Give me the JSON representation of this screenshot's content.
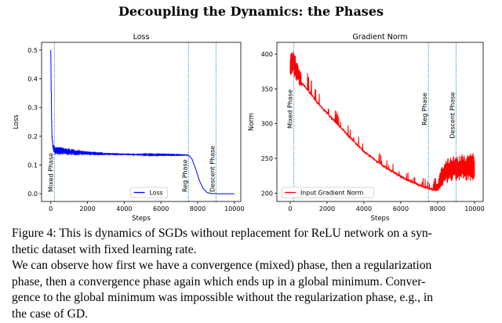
{
  "title": "Decoupling the Dynamics: the Phases",
  "chart_data": [
    {
      "type": "line",
      "title": "Loss",
      "xlabel": "Steps",
      "ylabel": "Loss",
      "xlim": [
        -500,
        10350
      ],
      "ylim": [
        -0.027,
        0.527
      ],
      "xticks": [
        0,
        2000,
        4000,
        6000,
        8000,
        10000
      ],
      "yticks": [
        0.0,
        0.1,
        0.2,
        0.3,
        0.4,
        0.5
      ],
      "ytick_labels": [
        "0.0",
        "0.1",
        "0.2",
        "0.3",
        "0.4",
        "0.5"
      ],
      "grid": false,
      "legend_placement": "lower-center",
      "series": [
        {
          "name": "Loss",
          "color": "#0000ff",
          "x": [
            0,
            30,
            60,
            120,
            200,
            1000,
            2000,
            3000,
            4000,
            5000,
            6000,
            7000,
            7500,
            7700,
            7900,
            8100,
            8300,
            8500,
            8700,
            9000,
            10000
          ],
          "lower": [
            0.5,
            0.3,
            0.2,
            0.15,
            0.135,
            0.134,
            0.134,
            0.134,
            0.134,
            0.134,
            0.134,
            0.134,
            0.134,
            0.12,
            0.085,
            0.045,
            0.018,
            0.005,
            0.001,
            0.0,
            0.0
          ],
          "upper": [
            0.5,
            0.37,
            0.22,
            0.175,
            0.167,
            0.158,
            0.148,
            0.143,
            0.14,
            0.138,
            0.137,
            0.136,
            0.135,
            0.12,
            0.085,
            0.045,
            0.018,
            0.005,
            0.001,
            0.0,
            0.0
          ]
        }
      ],
      "vlines": [
        {
          "x": 200,
          "label": "Mixed Phase"
        },
        {
          "x": 7500,
          "label": "Reg Phase"
        },
        {
          "x": 9000,
          "label": "Descent Phase"
        }
      ],
      "vline_color": "#1f77b4"
    },
    {
      "type": "line",
      "title": "Gradient Norm",
      "xlabel": "Steps",
      "ylabel": "Norm",
      "xlim": [
        -720,
        10470
      ],
      "ylim": [
        188,
        417
      ],
      "xticks": [
        0,
        2000,
        4000,
        6000,
        8000,
        10000
      ],
      "yticks": [
        200,
        250,
        300,
        350,
        400
      ],
      "ytick_labels": [
        "200",
        "250",
        "300",
        "350",
        "400"
      ],
      "grid": false,
      "legend_placement": "lower-left",
      "series": [
        {
          "name": "Input Gradient Norm",
          "color": "#ff0000",
          "x": [
            0,
            200,
            500,
            1000,
            1500,
            2000,
            3000,
            4000,
            5000,
            6000,
            7000,
            7500,
            7800,
            8000,
            8200,
            8500,
            9000,
            10000
          ],
          "lower": [
            370,
            368,
            355,
            340,
            325,
            312,
            285,
            258,
            238,
            222,
            210,
            206,
            202,
            201,
            208,
            214,
            217,
            218
          ],
          "upper": [
            400,
            405,
            380,
            362,
            340,
            322,
            292,
            264,
            244,
            228,
            215,
            210,
            210,
            215,
            240,
            250,
            255,
            258
          ]
        }
      ],
      "vlines": [
        {
          "x": 200,
          "label": "Mixed Phase"
        },
        {
          "x": 7500,
          "label": "Reg Phase"
        },
        {
          "x": 9000,
          "label": "Descent Phase"
        }
      ],
      "vline_color": "#1f77b4"
    }
  ],
  "caption": [
    "Figure 4: This is dynamics of SGDs without replacement for ReLU network on a syn-",
    "thetic dataset with fixed learning rate.",
    "We can observe how first we have a convergence (mixed) phase, then a regularization",
    "phase, then a convergence phase again which ends up in a global minimum. Conver-",
    "gence to the global minimum was impossible without the regularization phase, e.g., in",
    "the case of GD."
  ]
}
